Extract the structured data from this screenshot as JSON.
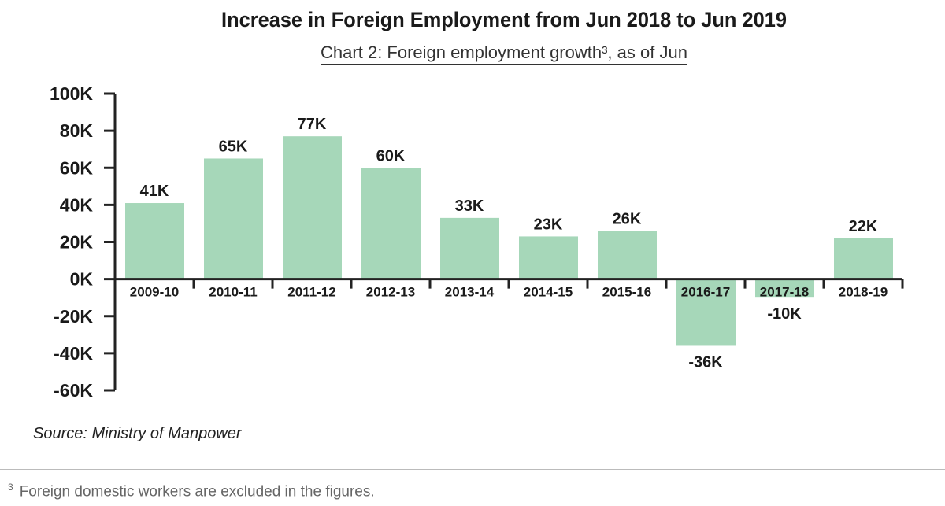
{
  "chart_data": {
    "type": "bar",
    "title": "Increase in Foreign Employment from Jun 2018 to Jun 2019",
    "subtitle": "Chart 2: Foreign employment growth³, as of Jun",
    "categories": [
      "2009-10",
      "2010-11",
      "2011-12",
      "2012-13",
      "2013-14",
      "2014-15",
      "2015-16",
      "2016-17",
      "2017-18",
      "2018-19"
    ],
    "values": [
      41,
      65,
      77,
      60,
      33,
      23,
      26,
      -36,
      -10,
      22
    ],
    "data_labels": [
      "41K",
      "65K",
      "77K",
      "60K",
      "33K",
      "23K",
      "26K",
      "-36K",
      "-10K",
      "22K"
    ],
    "unit": "K",
    "ylim": [
      -60,
      100
    ],
    "yticks": [
      100,
      80,
      60,
      40,
      20,
      0,
      -20,
      -40,
      -60
    ],
    "ytick_labels": [
      "100K",
      "80K",
      "60K",
      "40K",
      "20K",
      "0K",
      "-20K",
      "-40K",
      "-60K"
    ],
    "xlabel": "",
    "ylabel": "",
    "grid": false,
    "bar_color": "#a6d7b9"
  },
  "source": "Source: Ministry of Manpower",
  "footnote": {
    "mark": "3",
    "text": "Foreign domestic workers are excluded in the figures."
  }
}
